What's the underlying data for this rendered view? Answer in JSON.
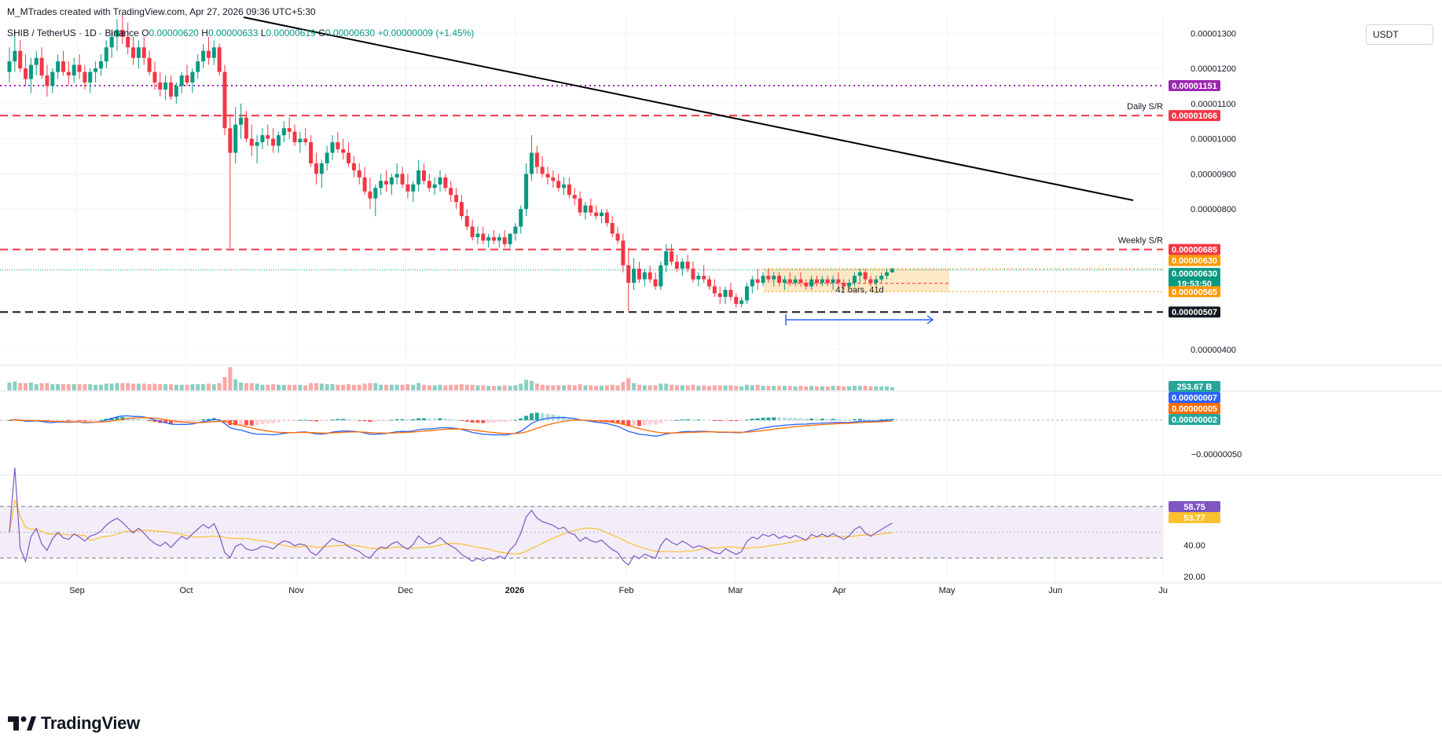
{
  "header": {
    "attribution": "M_MTrades created with TradingView.com, Apr 27, 2026 09:36 UTC+5:30",
    "currency_button": "USDT"
  },
  "legend": {
    "symbol": "SHIB / TetherUS · 1D · Binance",
    "open_label": "O",
    "open": "0.00000620",
    "high_label": "H",
    "high": "0.00000633",
    "low_label": "L",
    "low": "0.00000619",
    "close_label": "C",
    "close": "0.00000630",
    "change": "+0.00000009 (+1.45%)"
  },
  "colors": {
    "up": "#089981",
    "down": "#f23645",
    "macd_line": "#2962ff",
    "signal_line": "#ff6d00",
    "rsi_line": "#7e57c2",
    "rsi_ma": "#fbc02d",
    "daily_sr": "#f23645",
    "purple_line": "#9c27b0",
    "range_box": "#ffe0b2",
    "trendline": "#000000"
  },
  "brand": {
    "name": "TradingView"
  },
  "chart_data": {
    "type": "candlestick",
    "symbol": "SHIB / TetherUS",
    "timeframe": "1D",
    "exchange": "Binance",
    "x_axis_labels": [
      "Sep",
      "Oct",
      "Nov",
      "Dec",
      "2026",
      "Feb",
      "Mar",
      "Apr",
      "May",
      "Jun",
      "Ju"
    ],
    "price_axis": {
      "ticks": [
        "0.00001300",
        "0.00001200",
        "0.00001100",
        "0.00001000",
        "0.00000900",
        "0.00000800",
        "0.00000400"
      ],
      "ylim": [
        3.6e-06,
        1.35e-05
      ],
      "unit": "USDT"
    },
    "price_series": [
      [
        11.9,
        12.6,
        11.6,
        12.2
      ],
      [
        12.2,
        13.1,
        11.9,
        12.5
      ],
      [
        12.5,
        12.8,
        11.9,
        12.0
      ],
      [
        12.0,
        12.4,
        11.5,
        11.7
      ],
      [
        11.7,
        12.3,
        11.3,
        12.1
      ],
      [
        12.1,
        12.5,
        11.8,
        12.3
      ],
      [
        12.3,
        12.6,
        11.7,
        11.8
      ],
      [
        11.8,
        12.1,
        11.2,
        11.5
      ],
      [
        11.5,
        12.0,
        11.3,
        11.9
      ],
      [
        11.9,
        12.4,
        11.7,
        12.2
      ],
      [
        12.2,
        12.5,
        11.8,
        11.9
      ],
      [
        11.9,
        12.2,
        11.5,
        11.8
      ],
      [
        11.8,
        12.3,
        11.6,
        12.1
      ],
      [
        12.1,
        12.4,
        11.7,
        11.9
      ],
      [
        11.9,
        12.1,
        11.4,
        11.6
      ],
      [
        11.6,
        12.0,
        11.3,
        11.9
      ],
      [
        11.9,
        12.2,
        11.6,
        12.0
      ],
      [
        12.0,
        12.4,
        11.8,
        12.2
      ],
      [
        12.2,
        12.8,
        12.0,
        12.6
      ],
      [
        12.6,
        13.1,
        12.3,
        12.9
      ],
      [
        12.9,
        13.4,
        12.5,
        13.1
      ],
      [
        13.1,
        13.6,
        12.7,
        12.9
      ],
      [
        12.9,
        13.3,
        12.4,
        12.6
      ],
      [
        12.6,
        12.9,
        12.1,
        12.3
      ],
      [
        12.3,
        12.8,
        12.0,
        12.6
      ],
      [
        12.6,
        12.9,
        12.1,
        12.3
      ],
      [
        12.3,
        12.5,
        11.8,
        11.9
      ],
      [
        11.9,
        12.2,
        11.4,
        11.6
      ],
      [
        11.6,
        11.9,
        11.2,
        11.4
      ],
      [
        11.4,
        11.8,
        11.1,
        11.6
      ],
      [
        11.6,
        11.8,
        11.1,
        11.2
      ],
      [
        11.2,
        11.6,
        11.0,
        11.5
      ],
      [
        11.5,
        11.9,
        11.3,
        11.8
      ],
      [
        11.8,
        12.1,
        11.5,
        11.6
      ],
      [
        11.6,
        12.0,
        11.3,
        11.9
      ],
      [
        11.9,
        12.4,
        11.7,
        12.2
      ],
      [
        12.2,
        12.7,
        12.0,
        12.5
      ],
      [
        12.5,
        12.9,
        12.1,
        12.3
      ],
      [
        12.3,
        12.8,
        12.1,
        12.6
      ],
      [
        12.6,
        12.7,
        11.8,
        11.9
      ],
      [
        11.9,
        12.1,
        10.1,
        10.3
      ],
      [
        10.3,
        10.7,
        6.9,
        9.6
      ],
      [
        9.6,
        10.9,
        9.3,
        10.4
      ],
      [
        10.4,
        11.0,
        10.0,
        10.6
      ],
      [
        10.6,
        10.8,
        9.9,
        10.0
      ],
      [
        10.0,
        10.4,
        9.5,
        9.8
      ],
      [
        9.8,
        10.1,
        9.3,
        9.9
      ],
      [
        9.9,
        10.3,
        9.7,
        10.1
      ],
      [
        10.1,
        10.4,
        9.8,
        10.0
      ],
      [
        10.0,
        10.3,
        9.6,
        9.8
      ],
      [
        9.8,
        10.2,
        9.6,
        10.1
      ],
      [
        10.1,
        10.5,
        9.9,
        10.3
      ],
      [
        10.3,
        10.6,
        10.0,
        10.2
      ],
      [
        10.2,
        10.4,
        9.8,
        9.9
      ],
      [
        9.9,
        10.2,
        9.6,
        10.0
      ],
      [
        10.0,
        10.3,
        9.8,
        9.9
      ],
      [
        9.9,
        10.1,
        9.2,
        9.3
      ],
      [
        9.3,
        9.6,
        8.7,
        9.0
      ],
      [
        9.0,
        9.4,
        8.6,
        9.3
      ],
      [
        9.3,
        9.8,
        9.1,
        9.6
      ],
      [
        9.6,
        10.1,
        9.4,
        9.9
      ],
      [
        9.9,
        10.2,
        9.6,
        9.7
      ],
      [
        9.7,
        10.0,
        9.4,
        9.6
      ],
      [
        9.6,
        9.9,
        9.2,
        9.3
      ],
      [
        9.3,
        9.5,
        8.9,
        9.1
      ],
      [
        9.1,
        9.3,
        8.7,
        8.9
      ],
      [
        8.9,
        9.2,
        8.4,
        8.5
      ],
      [
        8.5,
        8.9,
        8.0,
        8.3
      ],
      [
        8.3,
        8.7,
        7.8,
        8.6
      ],
      [
        8.6,
        9.0,
        8.4,
        8.8
      ],
      [
        8.8,
        9.1,
        8.5,
        8.7
      ],
      [
        8.7,
        9.0,
        8.4,
        8.9
      ],
      [
        8.9,
        9.3,
        8.7,
        9.0
      ],
      [
        9.0,
        9.2,
        8.6,
        8.7
      ],
      [
        8.7,
        9.0,
        8.3,
        8.5
      ],
      [
        8.5,
        8.8,
        8.2,
        8.7
      ],
      [
        8.7,
        9.4,
        8.5,
        9.1
      ],
      [
        9.1,
        9.3,
        8.7,
        8.8
      ],
      [
        8.8,
        9.0,
        8.5,
        8.6
      ],
      [
        8.6,
        8.9,
        8.4,
        8.7
      ],
      [
        8.7,
        9.1,
        8.5,
        8.9
      ],
      [
        8.9,
        9.0,
        8.5,
        8.6
      ],
      [
        8.6,
        8.8,
        8.2,
        8.4
      ],
      [
        8.4,
        8.6,
        8.0,
        8.2
      ],
      [
        8.2,
        8.4,
        7.7,
        7.8
      ],
      [
        7.8,
        8.0,
        7.4,
        7.5
      ],
      [
        7.5,
        7.7,
        7.1,
        7.2
      ],
      [
        7.2,
        7.5,
        7.0,
        7.3
      ],
      [
        7.3,
        7.5,
        7.0,
        7.1
      ],
      [
        7.1,
        7.3,
        6.9,
        7.2
      ],
      [
        7.2,
        7.4,
        7.0,
        7.1
      ],
      [
        7.1,
        7.3,
        6.9,
        7.2
      ],
      [
        7.2,
        7.4,
        6.9,
        7.0
      ],
      [
        7.0,
        7.3,
        6.9,
        7.3
      ],
      [
        7.3,
        7.6,
        7.1,
        7.5
      ],
      [
        7.5,
        8.1,
        7.3,
        8.0
      ],
      [
        8.0,
        9.3,
        7.8,
        9.0
      ],
      [
        9.0,
        10.1,
        8.8,
        9.6
      ],
      [
        9.6,
        9.8,
        9.0,
        9.2
      ],
      [
        9.2,
        9.5,
        8.9,
        9.0
      ],
      [
        9.0,
        9.2,
        8.7,
        8.9
      ],
      [
        8.9,
        9.1,
        8.6,
        8.8
      ],
      [
        8.8,
        9.0,
        8.5,
        8.6
      ],
      [
        8.6,
        8.9,
        8.4,
        8.7
      ],
      [
        8.7,
        8.9,
        8.3,
        8.4
      ],
      [
        8.4,
        8.6,
        8.1,
        8.3
      ],
      [
        8.3,
        8.5,
        7.8,
        7.9
      ],
      [
        7.9,
        8.2,
        7.7,
        8.1
      ],
      [
        8.1,
        8.3,
        7.8,
        7.9
      ],
      [
        7.9,
        8.1,
        7.7,
        7.8
      ],
      [
        7.8,
        8.0,
        7.6,
        7.9
      ],
      [
        7.9,
        8.0,
        7.5,
        7.6
      ],
      [
        7.6,
        7.8,
        7.2,
        7.3
      ],
      [
        7.3,
        7.5,
        7.0,
        7.1
      ],
      [
        7.1,
        7.3,
        6.2,
        6.4
      ],
      [
        6.4,
        6.9,
        5.1,
        5.9
      ],
      [
        5.9,
        6.6,
        5.7,
        6.3
      ],
      [
        6.3,
        6.5,
        5.9,
        6.0
      ],
      [
        6.0,
        6.3,
        5.8,
        6.2
      ],
      [
        6.2,
        6.4,
        5.9,
        6.0
      ],
      [
        6.0,
        6.2,
        5.7,
        5.8
      ],
      [
        5.8,
        6.5,
        5.7,
        6.4
      ],
      [
        6.4,
        7.0,
        6.2,
        6.8
      ],
      [
        6.8,
        7.0,
        6.4,
        6.5
      ],
      [
        6.5,
        6.7,
        6.2,
        6.3
      ],
      [
        6.3,
        6.6,
        6.1,
        6.5
      ],
      [
        6.5,
        6.7,
        6.2,
        6.3
      ],
      [
        6.3,
        6.5,
        5.9,
        6.0
      ],
      [
        6.0,
        6.2,
        5.8,
        6.1
      ],
      [
        6.1,
        6.4,
        5.9,
        6.0
      ],
      [
        6.0,
        6.1,
        5.7,
        5.8
      ],
      [
        5.8,
        6.0,
        5.5,
        5.6
      ],
      [
        5.6,
        5.8,
        5.3,
        5.5
      ],
      [
        5.5,
        5.8,
        5.3,
        5.7
      ],
      [
        5.7,
        5.9,
        5.4,
        5.5
      ],
      [
        5.5,
        5.6,
        5.2,
        5.3
      ],
      [
        5.3,
        5.5,
        5.2,
        5.4
      ],
      [
        5.4,
        5.9,
        5.3,
        5.8
      ],
      [
        5.8,
        6.1,
        5.6,
        6.0
      ],
      [
        6.0,
        6.3,
        5.7,
        5.9
      ],
      [
        5.9,
        6.2,
        5.8,
        6.1
      ],
      [
        6.1,
        6.3,
        5.9,
        6.0
      ],
      [
        6.0,
        6.2,
        5.8,
        6.1
      ],
      [
        6.1,
        6.2,
        5.8,
        5.9
      ],
      [
        5.9,
        6.1,
        5.7,
        6.0
      ],
      [
        6.0,
        6.2,
        5.8,
        5.9
      ],
      [
        5.9,
        6.1,
        5.8,
        6.0
      ],
      [
        6.0,
        6.2,
        5.8,
        5.9
      ],
      [
        5.9,
        6.0,
        5.7,
        5.8
      ],
      [
        5.8,
        6.1,
        5.7,
        6.0
      ],
      [
        6.0,
        6.1,
        5.8,
        5.9
      ],
      [
        5.9,
        6.1,
        5.8,
        6.0
      ],
      [
        6.0,
        6.1,
        5.8,
        5.9
      ],
      [
        5.9,
        6.1,
        5.7,
        6.0
      ],
      [
        6.0,
        6.2,
        5.8,
        5.9
      ],
      [
        5.9,
        6.0,
        5.7,
        5.8
      ],
      [
        5.8,
        6.0,
        5.7,
        5.9
      ],
      [
        5.9,
        6.2,
        5.8,
        6.1
      ],
      [
        6.1,
        6.3,
        5.9,
        6.2
      ],
      [
        6.2,
        6.3,
        5.9,
        6.0
      ],
      [
        6.0,
        6.1,
        5.8,
        5.9
      ],
      [
        5.9,
        6.1,
        5.8,
        6.0
      ],
      [
        6.0,
        6.2,
        5.9,
        6.1
      ],
      [
        6.1,
        6.3,
        6.0,
        6.2
      ],
      [
        6.2,
        6.33,
        6.19,
        6.3
      ]
    ],
    "levels": [
      {
        "name": "purple dotted",
        "value": "0.00001151",
        "label": ""
      },
      {
        "name": "Daily S/R",
        "value": "0.00001066",
        "label": "Daily S/R"
      },
      {
        "name": "Weekly S/R",
        "value": "0.00000685",
        "label": "Weekly S/R"
      },
      {
        "name": "range top",
        "value": "0.00000630",
        "label": ""
      },
      {
        "name": "last price",
        "value": "0.00000630",
        "countdown": "19:53:50",
        "label": ""
      },
      {
        "name": "range bottom",
        "value": "0.00000565",
        "label": ""
      },
      {
        "name": "support",
        "value": "0.00000507",
        "label": ""
      }
    ],
    "range_box_label": "41 bars, 41d",
    "volume_label": "253.67 B",
    "macd": {
      "values": [
        "0.00000007",
        "0.00000005",
        "0.00000002"
      ],
      "tick": "−0.00000050"
    },
    "rsi": {
      "value": "58.75",
      "ma_value": "53.77",
      "ticks": [
        "40.00",
        "20.00"
      ],
      "bands": [
        70,
        30
      ],
      "ylim": [
        15,
        90
      ]
    }
  }
}
